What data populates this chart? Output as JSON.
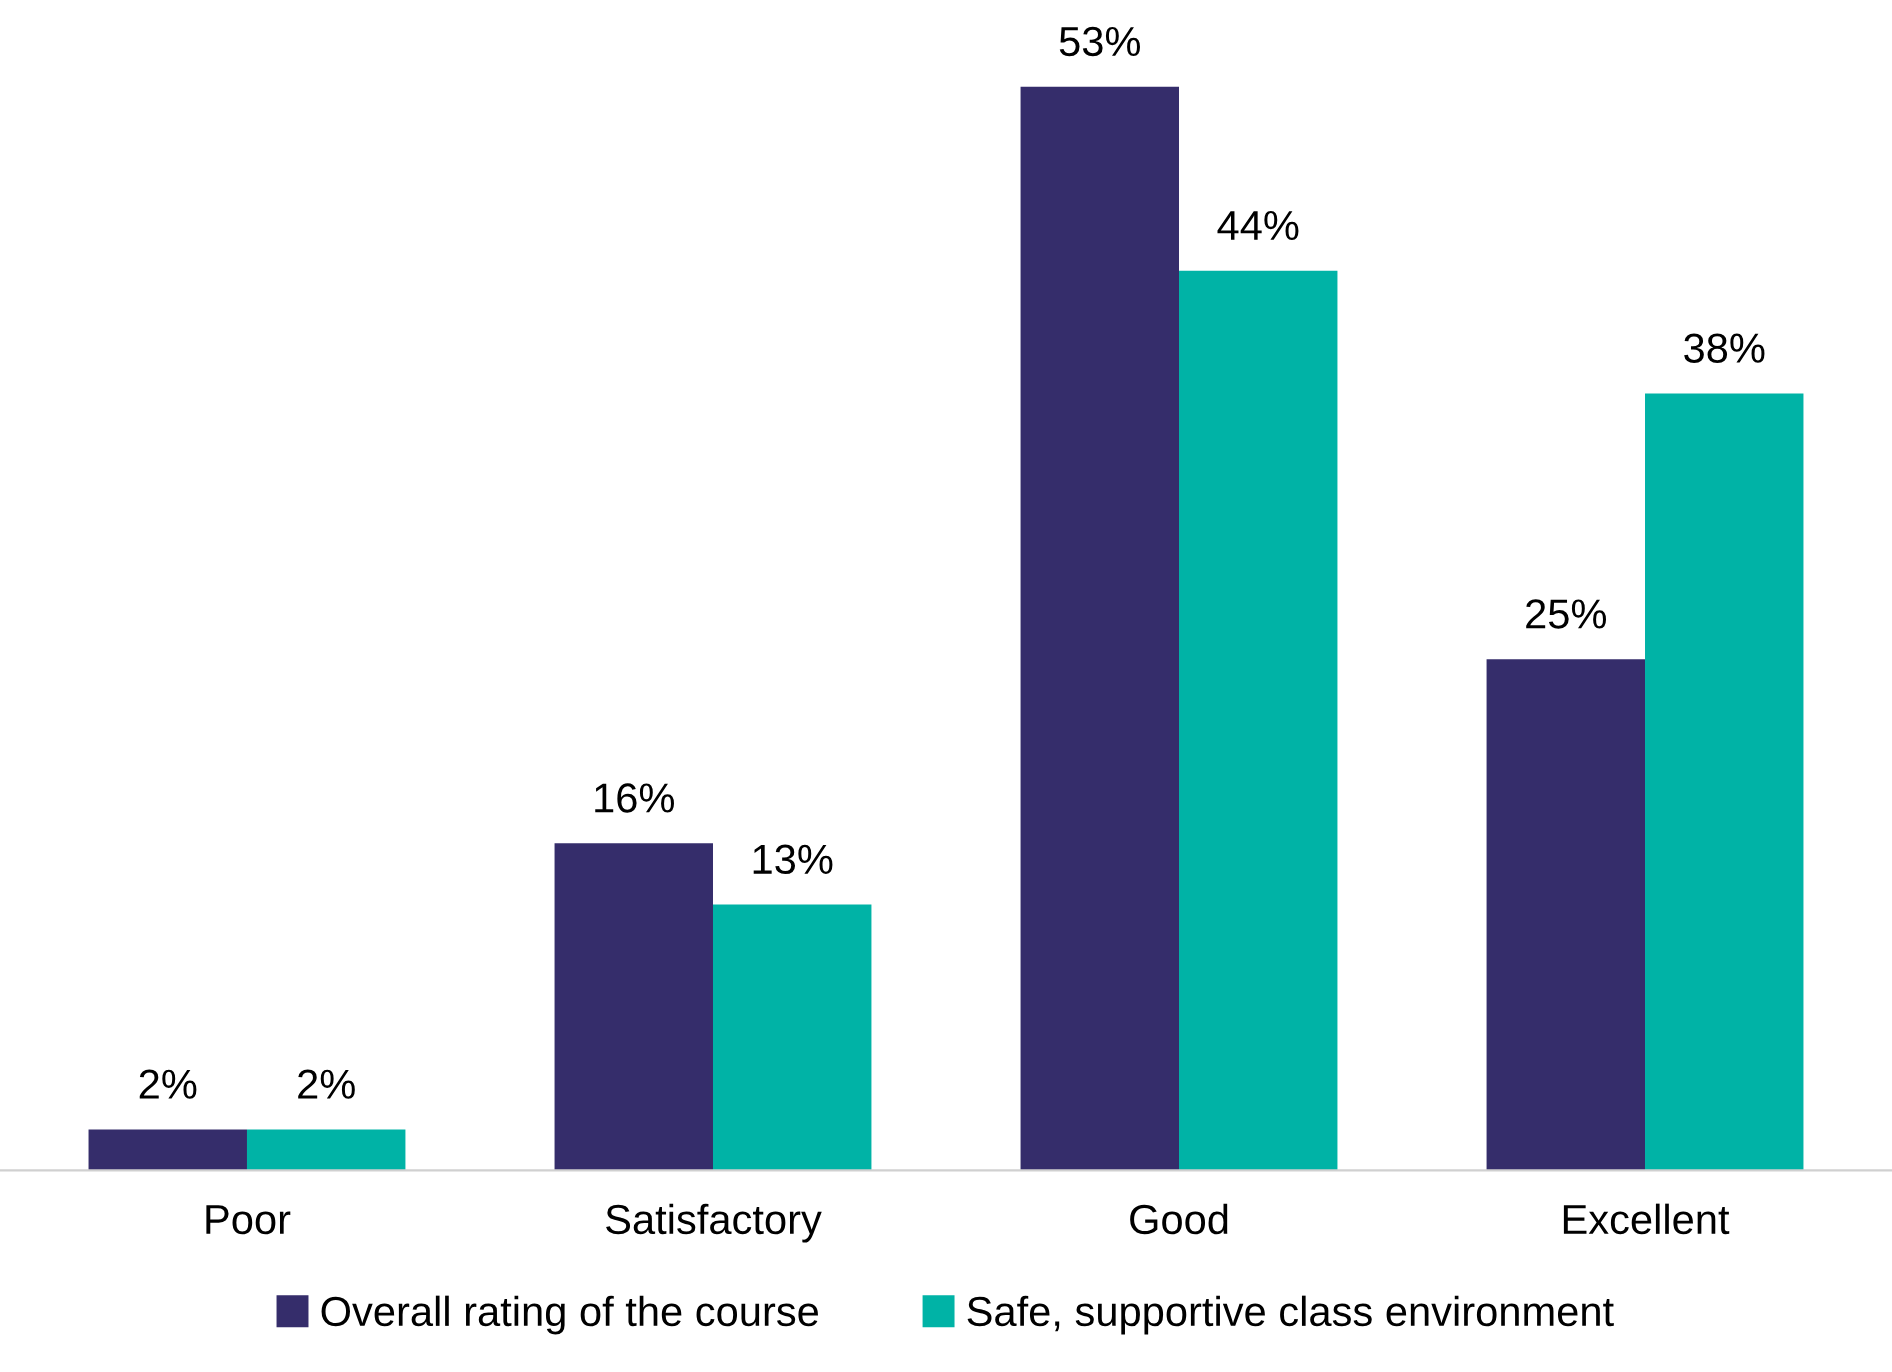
{
  "chart_data": {
    "type": "bar",
    "categories": [
      "Poor",
      "Satisfactory",
      "Good",
      "Excellent"
    ],
    "series": [
      {
        "name": "Overall rating of the course",
        "color": "#352d6b",
        "values": [
          2,
          16,
          53,
          25
        ],
        "value_labels": [
          "2%",
          "16%",
          "53%",
          "25%"
        ]
      },
      {
        "name": "Safe, supportive class environment",
        "color": "#00b3a6",
        "values": [
          2,
          13,
          44,
          38
        ],
        "value_labels": [
          "2%",
          "13%",
          "44%",
          "38%"
        ]
      }
    ],
    "grid": false,
    "legend": "bottom"
  }
}
